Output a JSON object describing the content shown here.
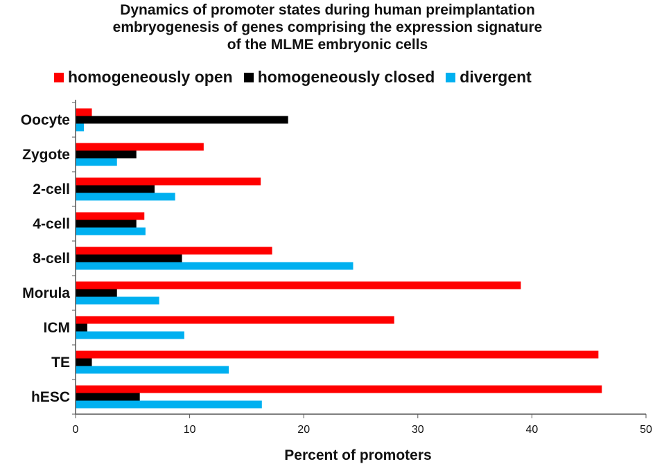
{
  "chart_data": {
    "type": "bar",
    "orientation": "horizontal",
    "title_lines": [
      "Dynamics of promoter states during human preimplantation",
      "embryogenesis of genes comprising the expression signature",
      "of the MLME embryonic cells"
    ],
    "categories": [
      "Oocyte",
      "Zygote",
      "2-cell",
      "4-cell",
      "8-cell",
      "Morula",
      "ICM",
      "TE",
      "hESC"
    ],
    "series": [
      {
        "name": "homogeneously open",
        "color": "#ff0000",
        "values": [
          1.4,
          11.2,
          16.2,
          6.0,
          17.2,
          39.0,
          27.9,
          45.8,
          46.1
        ]
      },
      {
        "name": "homogeneously closed",
        "color": "#000000",
        "values": [
          18.6,
          5.3,
          6.9,
          5.3,
          9.3,
          3.6,
          1.0,
          1.4,
          5.6
        ]
      },
      {
        "name": "divergent",
        "color": "#00b0f0",
        "values": [
          0.7,
          3.6,
          8.7,
          6.1,
          24.3,
          7.3,
          9.5,
          13.4,
          16.3
        ]
      }
    ],
    "xlabel": "Percent of promoters",
    "ylabel": "",
    "xlim": [
      0,
      50
    ],
    "xticks": [
      0,
      10,
      20,
      30,
      40,
      50
    ],
    "grid": false,
    "legend_position": "top"
  }
}
